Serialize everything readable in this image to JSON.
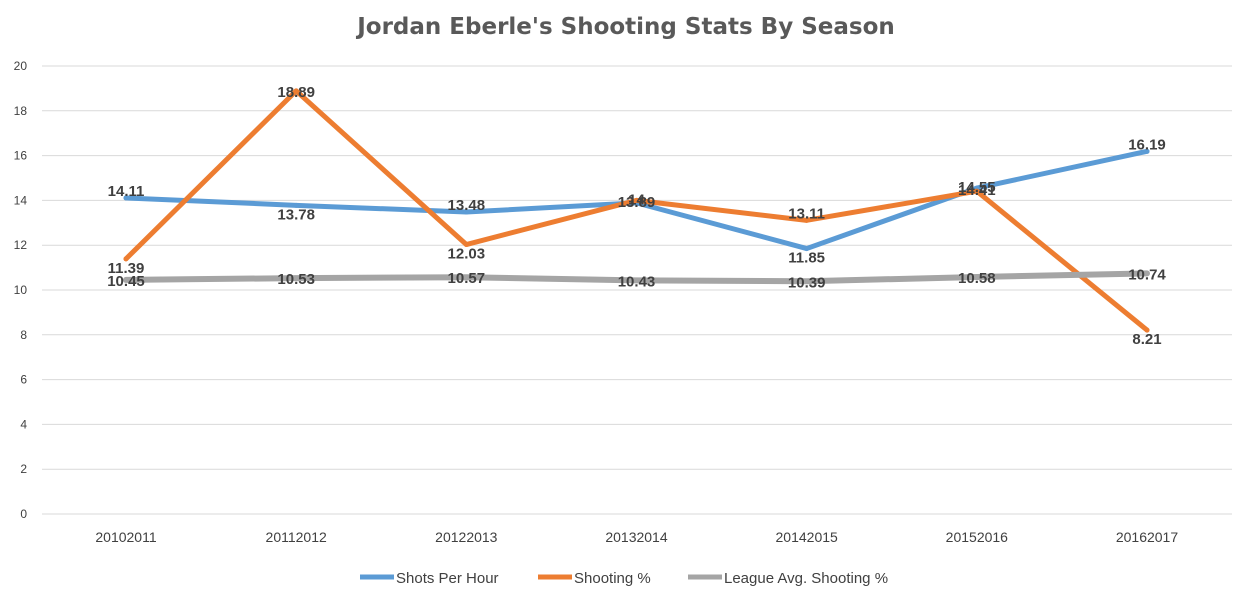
{
  "chart_data": {
    "type": "line",
    "title": "Jordan Eberle's Shooting Stats By Season",
    "xlabel": "",
    "ylabel": "",
    "ylim": [
      0,
      20
    ],
    "yticks": [
      0,
      2,
      4,
      6,
      8,
      10,
      12,
      14,
      16,
      18,
      20
    ],
    "grid": true,
    "legend_position": "bottom",
    "categories": [
      "20102011",
      "20112012",
      "20122013",
      "20132014",
      "20142015",
      "20152016",
      "20162017"
    ],
    "series": [
      {
        "name": "Shots Per Hour",
        "color": "#5b9bd5",
        "values": [
          14.11,
          13.78,
          13.48,
          13.89,
          11.85,
          14.55,
          16.19
        ]
      },
      {
        "name": "Shooting %",
        "color": "#ed7d31",
        "values": [
          11.39,
          18.89,
          12.03,
          14.0,
          13.11,
          14.41,
          8.21
        ]
      },
      {
        "name": "League Avg. Shooting %",
        "color": "#a5a5a5",
        "values": [
          10.45,
          10.53,
          10.57,
          10.43,
          10.39,
          10.58,
          10.74
        ]
      }
    ],
    "data_labels": [
      [
        "14.11",
        "13.78",
        "13.48",
        "13.89",
        "11.85",
        "14.55",
        "16.19"
      ],
      [
        "11.39",
        "18.89",
        "12.03",
        "14",
        "13.11",
        "14.41",
        "8.21"
      ],
      [
        "10.45",
        "10.53",
        "10.57",
        "10.43",
        "10.39",
        "10.58",
        "10.74"
      ]
    ]
  }
}
